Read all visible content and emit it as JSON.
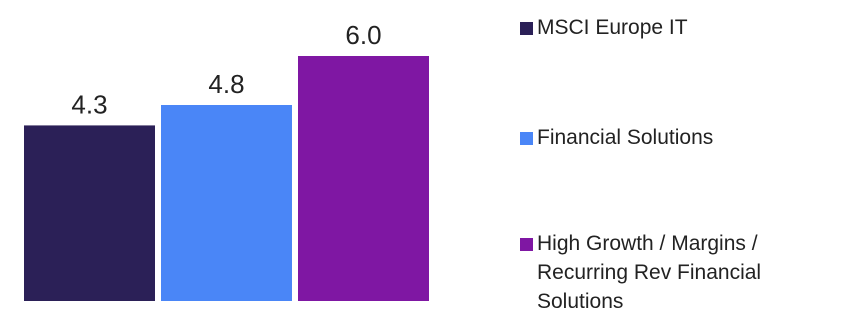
{
  "chart_data": {
    "type": "bar",
    "categories": [
      "MSCI Europe IT",
      "Financial Solutions",
      "High Growth / Margins / Recurring Rev Financial Solutions"
    ],
    "values": [
      4.3,
      4.8,
      6.0
    ],
    "data_labels": [
      "4.3",
      "4.8",
      "6.0"
    ],
    "colors": [
      "#2b2057",
      "#4a86f7",
      "#7f17a3"
    ],
    "ylim": [
      0,
      6.0
    ],
    "grid": false,
    "legend_position": "right",
    "title": "",
    "xlabel": "",
    "ylabel": ""
  },
  "legend": [
    {
      "label": "MSCI Europe IT",
      "color": "#2b2057"
    },
    {
      "label": "Financial Solutions",
      "color": "#4a86f7"
    },
    {
      "label": "High Growth / Margins / Recurring Rev Financial Solutions",
      "color": "#7f17a3"
    }
  ]
}
